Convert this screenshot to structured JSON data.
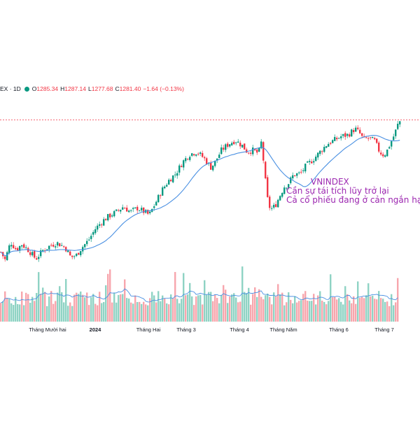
{
  "header": {
    "symbol": "EX · 1D",
    "open_label": "O",
    "open": "1285.34",
    "high_label": "H",
    "high": "1287.14",
    "low_label": "L",
    "low": "1277.68",
    "close_label": "C",
    "close": "1281.40",
    "change": "−1.64 (−0.13%)"
  },
  "annotation": {
    "line1": "VNINDEX",
    "line2": "Cần sự tái tích lũy trở lại",
    "line3": "Cả cổ phiếu đang ở cản ngắn hạn",
    "color": "#9c27b0"
  },
  "colors": {
    "up": "#089981",
    "down": "#f23645",
    "vol_up": "#8fd3c4",
    "vol_down": "#f7a6ad",
    "ma": "#4a90e2",
    "last_price_line": "#f23645"
  },
  "chart_data": {
    "type": "candlestick",
    "interval": "1D",
    "y_range": [
      1085,
      1310
    ],
    "last_price": 1281.4,
    "x_axis_labels": [
      {
        "label": "Tháng Mười hai",
        "bold": false
      },
      {
        "label": "2024",
        "bold": true
      },
      {
        "label": "Tháng Hai",
        "bold": false
      },
      {
        "label": "Tháng 3",
        "bold": false
      },
      {
        "label": "Tháng 4",
        "bold": false
      },
      {
        "label": "Tháng Năm",
        "bold": false
      },
      {
        "label": "Tháng 6",
        "bold": false
      },
      {
        "label": "Tháng 7",
        "bold": false
      }
    ],
    "close_path": [
      [
        0,
        1110
      ],
      [
        6,
        1100
      ],
      [
        14,
        1123
      ],
      [
        22,
        1113
      ],
      [
        30,
        1120
      ],
      [
        40,
        1112
      ],
      [
        50,
        1101
      ],
      [
        60,
        1112
      ],
      [
        70,
        1118
      ],
      [
        80,
        1122
      ],
      [
        92,
        1116
      ],
      [
        100,
        1103
      ],
      [
        108,
        1106
      ],
      [
        115,
        1115
      ],
      [
        125,
        1125
      ],
      [
        135,
        1140
      ],
      [
        145,
        1150
      ],
      [
        155,
        1157
      ],
      [
        165,
        1162
      ],
      [
        175,
        1169
      ],
      [
        185,
        1162
      ],
      [
        195,
        1167
      ],
      [
        205,
        1162
      ],
      [
        212,
        1158
      ],
      [
        220,
        1172
      ],
      [
        230,
        1190
      ],
      [
        240,
        1203
      ],
      [
        250,
        1212
      ],
      [
        260,
        1227
      ],
      [
        270,
        1237
      ],
      [
        280,
        1240
      ],
      [
        290,
        1232
      ],
      [
        300,
        1220
      ],
      [
        305,
        1225
      ],
      [
        315,
        1242
      ],
      [
        325,
        1250
      ],
      [
        335,
        1255
      ],
      [
        345,
        1248
      ],
      [
        352,
        1240
      ],
      [
        360,
        1242
      ],
      [
        368,
        1238
      ],
      [
        372,
        1252
      ],
      [
        376,
        1222
      ],
      [
        380,
        1182
      ],
      [
        385,
        1165
      ],
      [
        392,
        1170
      ],
      [
        398,
        1182
      ],
      [
        405,
        1195
      ],
      [
        410,
        1198
      ],
      [
        418,
        1210
      ],
      [
        428,
        1212
      ],
      [
        436,
        1222
      ],
      [
        446,
        1230
      ],
      [
        456,
        1240
      ],
      [
        466,
        1250
      ],
      [
        476,
        1255
      ],
      [
        486,
        1260
      ],
      [
        496,
        1262
      ],
      [
        506,
        1270
      ],
      [
        512,
        1265
      ],
      [
        518,
        1256
      ],
      [
        526,
        1258
      ],
      [
        534,
        1254
      ],
      [
        540,
        1242
      ],
      [
        545,
        1236
      ],
      [
        550,
        1238
      ],
      [
        556,
        1250
      ],
      [
        562,
        1262
      ],
      [
        567,
        1275
      ],
      [
        571,
        1281
      ]
    ],
    "volume_ma_shape": "smoothed",
    "volume_bars_count": 190
  }
}
